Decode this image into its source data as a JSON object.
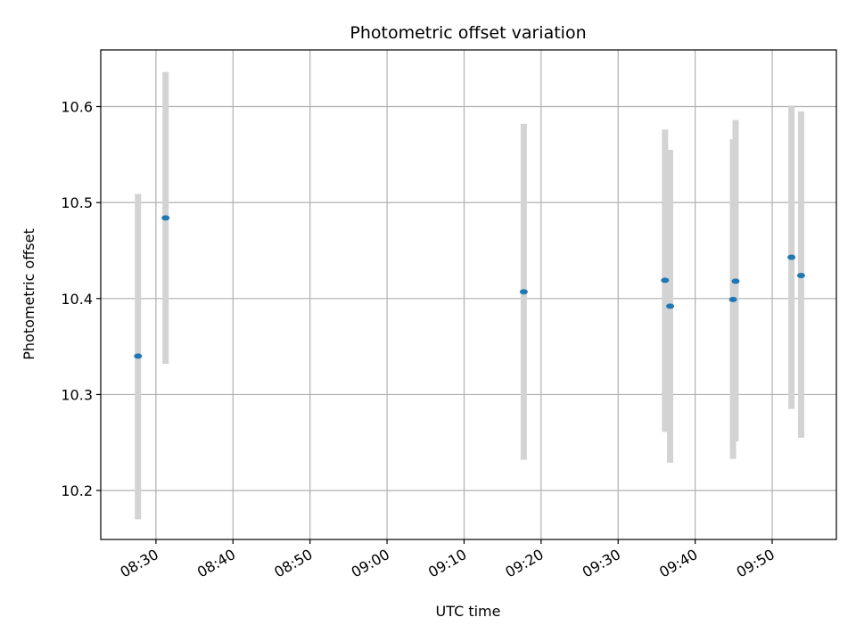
{
  "chart_data": {
    "type": "scatter",
    "title": "Photometric offset variation",
    "xlabel": "UTC time",
    "ylabel": "Photometric offset",
    "grid": true,
    "xlim": [
      "08:22:50",
      "09:58:20"
    ],
    "ylim": [
      10.149,
      10.659
    ],
    "x_ticks": [
      "08:30",
      "08:40",
      "08:50",
      "09:00",
      "09:10",
      "09:20",
      "09:30",
      "09:40",
      "09:50"
    ],
    "y_ticks": [
      10.2,
      10.3,
      10.4,
      10.5,
      10.6
    ],
    "marker_color": "#1f77b4",
    "errorbar_color": "#d3d3d3",
    "points": [
      {
        "x": "08:27:40",
        "y": 10.34,
        "yerr_low": 10.17,
        "yerr_high": 10.509
      },
      {
        "x": "08:31:15",
        "y": 10.484,
        "yerr_low": 10.332,
        "yerr_high": 10.636
      },
      {
        "x": "09:17:45",
        "y": 10.407,
        "yerr_low": 10.232,
        "yerr_high": 10.582
      },
      {
        "x": "09:36:05",
        "y": 10.419,
        "yerr_low": 10.261,
        "yerr_high": 10.576
      },
      {
        "x": "09:36:45",
        "y": 10.392,
        "yerr_low": 10.229,
        "yerr_high": 10.555
      },
      {
        "x": "09:44:55",
        "y": 10.399,
        "yerr_low": 10.233,
        "yerr_high": 10.566
      },
      {
        "x": "09:45:15",
        "y": 10.418,
        "yerr_low": 10.251,
        "yerr_high": 10.586
      },
      {
        "x": "09:52:30",
        "y": 10.443,
        "yerr_low": 10.285,
        "yerr_high": 10.601
      },
      {
        "x": "09:53:45",
        "y": 10.424,
        "yerr_low": 10.255,
        "yerr_high": 10.595
      }
    ]
  }
}
